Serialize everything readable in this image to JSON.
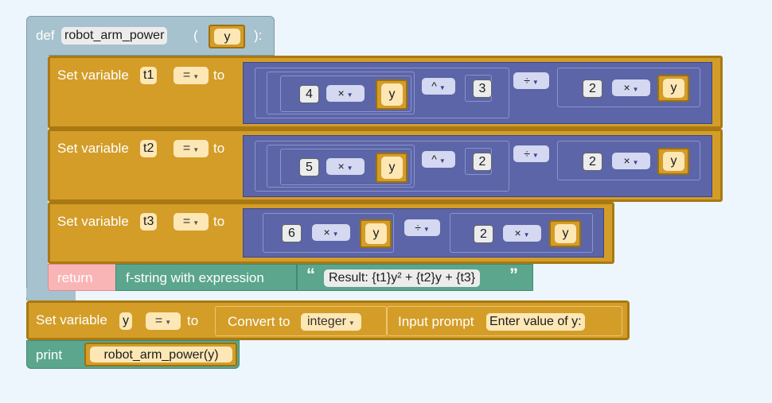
{
  "def": {
    "keyword": "def",
    "func_name": "robot_arm_power",
    "open_paren": "(",
    "param": "y",
    "close": "):"
  },
  "rows": [
    {
      "label": "Set variable",
      "var": "t1",
      "assign_op": "=",
      "to": "to",
      "expr": {
        "coef": "4",
        "mul": "×",
        "var": "y",
        "pow": "^",
        "exp": "3",
        "div": "÷",
        "den_coef": "2",
        "den_mul": "×",
        "den_var": "y"
      }
    },
    {
      "label": "Set variable",
      "var": "t2",
      "assign_op": "=",
      "to": "to",
      "expr": {
        "coef": "5",
        "mul": "×",
        "var": "y",
        "pow": "^",
        "exp": "2",
        "div": "÷",
        "den_coef": "2",
        "den_mul": "×",
        "den_var": "y"
      }
    },
    {
      "label": "Set variable",
      "var": "t3",
      "assign_op": "=",
      "to": "to",
      "expr": {
        "coef": "6",
        "mul": "×",
        "var": "y",
        "div": "÷",
        "den_coef": "2",
        "den_mul": "×",
        "den_var": "y"
      }
    }
  ],
  "return_row": {
    "keyword": "return",
    "fstring_label": "f-string with expression",
    "open_quote": "“",
    "template": "Result: {t1}y² + {t2}y + {t3}",
    "close_quote": "”"
  },
  "set_y": {
    "label": "Set variable",
    "var": "y",
    "assign_op": "=",
    "to": "to",
    "convert_label": "Convert to",
    "convert_type": "integer",
    "input_label": "Input prompt",
    "prompt": "Enter value of y:"
  },
  "print_row": {
    "keyword": "print",
    "call": "robot_arm_power(y)"
  },
  "colors": {
    "def_block": "#a5c2ce",
    "variable_block": "#d39d28",
    "math_block": "#5b65a7",
    "return_block": "#f9b5b5",
    "text_block": "#5ba68d",
    "background": "#eef6fd"
  }
}
